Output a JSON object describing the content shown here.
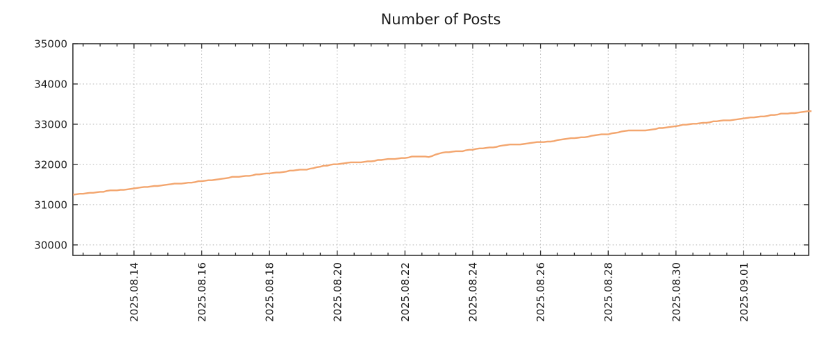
{
  "chart_data": {
    "type": "line",
    "title": "Number of Posts",
    "xlabel": "",
    "ylabel": "",
    "legend": "none",
    "grid": true,
    "colors": {
      "line": "#f3a66f",
      "grid": "#b3b3b3",
      "axis": "#262626",
      "text": "#1a1a1a"
    },
    "ylim": [
      29740,
      35000
    ],
    "xlim_days": [
      -1.803,
      19.918
    ],
    "y_ticks": [
      {
        "value": 30000,
        "label": "30000"
      },
      {
        "value": 31000,
        "label": "31000"
      },
      {
        "value": 32000,
        "label": "32000"
      },
      {
        "value": 33000,
        "label": "33000"
      },
      {
        "value": 34000,
        "label": "34000"
      },
      {
        "value": 35000,
        "label": "35000"
      }
    ],
    "x_ticks": [
      {
        "day": 0,
        "label": "2025.08.14"
      },
      {
        "day": 2,
        "label": "2025.08.16"
      },
      {
        "day": 4,
        "label": "2025.08.18"
      },
      {
        "day": 6,
        "label": "2025.08.20"
      },
      {
        "day": 8,
        "label": "2025.08.22"
      },
      {
        "day": 10,
        "label": "2025.08.24"
      },
      {
        "day": 12,
        "label": "2025.08.26"
      },
      {
        "day": 14,
        "label": "2025.08.28"
      },
      {
        "day": 16,
        "label": "2025.08.30"
      },
      {
        "day": 18,
        "label": "2025.09.01"
      }
    ],
    "x_minor_ticks": {
      "start": -1.5,
      "end": 19.5,
      "step": 0.5,
      "unit": "days"
    },
    "series": [
      {
        "name": "posts",
        "color": "#f3a66f",
        "x_unit": "days since 2025.08.14",
        "points": [
          [
            -1.8,
            31248
          ],
          [
            -1,
            31320
          ],
          [
            0,
            31400
          ],
          [
            1,
            31500
          ],
          [
            2,
            31580
          ],
          [
            3,
            31690
          ],
          [
            4,
            31780
          ],
          [
            5,
            31872
          ],
          [
            6,
            32015
          ],
          [
            6.4,
            32048
          ],
          [
            6.7,
            32052
          ],
          [
            7,
            32085
          ],
          [
            8,
            32170
          ],
          [
            8.35,
            32196
          ],
          [
            8.75,
            32198
          ],
          [
            9,
            32276
          ],
          [
            10,
            32368
          ],
          [
            11,
            32480
          ],
          [
            12,
            32550
          ],
          [
            13,
            32652
          ],
          [
            14,
            32760
          ],
          [
            14.6,
            32842
          ],
          [
            15.2,
            32852
          ],
          [
            16,
            32960
          ],
          [
            17,
            33052
          ],
          [
            18,
            33140
          ],
          [
            19,
            33240
          ],
          [
            20.06,
            33330
          ]
        ]
      }
    ]
  }
}
